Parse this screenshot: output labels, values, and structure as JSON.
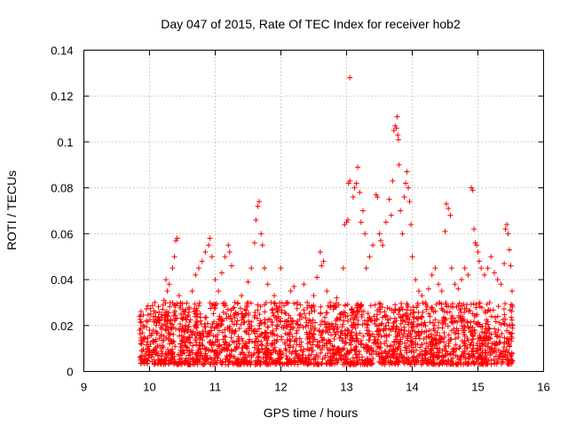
{
  "chart_data": {
    "type": "scatter",
    "title": "Day 047 of 2015, Rate Of TEC Index for receiver hob2",
    "xlabel": "GPS time / hours",
    "ylabel": "ROTI / TECUs",
    "xlim": [
      9,
      16
    ],
    "ylim": [
      0,
      0.14
    ],
    "xticks": [
      9,
      10,
      11,
      12,
      13,
      14,
      15,
      16
    ],
    "xtick_labels": [
      "9",
      "10",
      "11",
      "12",
      "13",
      "14",
      "15",
      "16"
    ],
    "yticks": [
      0,
      0.02,
      0.04,
      0.06,
      0.08,
      0.1,
      0.12,
      0.14
    ],
    "ytick_labels": [
      "0",
      "0.02",
      "0.04",
      "0.06",
      "0.08",
      "0.1",
      "0.12",
      "0.14"
    ],
    "grid": true,
    "marker": "+",
    "color": "#ff0000",
    "series": [
      {
        "name": "ROTI",
        "points": [
          [
            9.85,
            0.024
          ],
          [
            9.85,
            0.018
          ],
          [
            9.87,
            0.012
          ],
          [
            9.88,
            0.009
          ],
          [
            9.9,
            0.02
          ],
          [
            9.92,
            0.015
          ],
          [
            9.95,
            0.022
          ],
          [
            9.97,
            0.01
          ],
          [
            10.0,
            0.018
          ],
          [
            10.02,
            0.025
          ],
          [
            10.05,
            0.013
          ],
          [
            10.08,
            0.03
          ],
          [
            10.1,
            0.02
          ],
          [
            10.12,
            0.011
          ],
          [
            10.15,
            0.022
          ],
          [
            10.18,
            0.016
          ],
          [
            10.2,
            0.027
          ],
          [
            10.22,
            0.031
          ],
          [
            10.25,
            0.04
          ],
          [
            10.27,
            0.035
          ],
          [
            10.3,
            0.038
          ],
          [
            10.32,
            0.021
          ],
          [
            10.35,
            0.045
          ],
          [
            10.38,
            0.05
          ],
          [
            10.4,
            0.057
          ],
          [
            10.42,
            0.058
          ],
          [
            10.45,
            0.033
          ],
          [
            10.48,
            0.025
          ],
          [
            10.5,
            0.014
          ],
          [
            10.55,
            0.02
          ],
          [
            10.6,
            0.028
          ],
          [
            10.65,
            0.035
          ],
          [
            10.7,
            0.042
          ],
          [
            10.75,
            0.045
          ],
          [
            10.8,
            0.048
          ],
          [
            10.85,
            0.052
          ],
          [
            10.9,
            0.055
          ],
          [
            10.92,
            0.058
          ],
          [
            10.95,
            0.05
          ],
          [
            11.0,
            0.04
          ],
          [
            11.05,
            0.035
          ],
          [
            11.1,
            0.043
          ],
          [
            11.15,
            0.05
          ],
          [
            11.2,
            0.055
          ],
          [
            11.22,
            0.052
          ],
          [
            11.25,
            0.046
          ],
          [
            11.3,
            0.03
          ],
          [
            11.35,
            0.025
          ],
          [
            11.4,
            0.033
          ],
          [
            11.45,
            0.027
          ],
          [
            11.5,
            0.039
          ],
          [
            11.55,
            0.045
          ],
          [
            11.6,
            0.056
          ],
          [
            11.62,
            0.066
          ],
          [
            11.65,
            0.072
          ],
          [
            11.67,
            0.074
          ],
          [
            11.7,
            0.06
          ],
          [
            11.72,
            0.055
          ],
          [
            11.75,
            0.045
          ],
          [
            11.8,
            0.038
          ],
          [
            11.85,
            0.03
          ],
          [
            11.9,
            0.033
          ],
          [
            11.95,
            0.026
          ],
          [
            12.0,
            0.045
          ],
          [
            12.05,
            0.02
          ],
          [
            12.1,
            0.03
          ],
          [
            12.15,
            0.035
          ],
          [
            12.2,
            0.037
          ],
          [
            12.25,
            0.03
          ],
          [
            12.3,
            0.025
          ],
          [
            12.35,
            0.038
          ],
          [
            12.4,
            0.03
          ],
          [
            12.45,
            0.022
          ],
          [
            12.5,
            0.033
          ],
          [
            12.55,
            0.041
          ],
          [
            12.6,
            0.052
          ],
          [
            12.62,
            0.046
          ],
          [
            12.65,
            0.048
          ],
          [
            12.7,
            0.035
          ],
          [
            12.75,
            0.03
          ],
          [
            12.8,
            0.027
          ],
          [
            12.85,
            0.032
          ],
          [
            12.9,
            0.025
          ],
          [
            12.95,
            0.045
          ],
          [
            12.97,
            0.064
          ],
          [
            13.0,
            0.065
          ],
          [
            13.02,
            0.066
          ],
          [
            13.03,
            0.082
          ],
          [
            13.05,
            0.083
          ],
          [
            13.05,
            0.128
          ],
          [
            13.1,
            0.076
          ],
          [
            13.12,
            0.08
          ],
          [
            13.15,
            0.082
          ],
          [
            13.17,
            0.089
          ],
          [
            13.2,
            0.078
          ],
          [
            13.22,
            0.065
          ],
          [
            13.25,
            0.07
          ],
          [
            13.28,
            0.06
          ],
          [
            13.3,
            0.045
          ],
          [
            13.35,
            0.05
          ],
          [
            13.4,
            0.055
          ],
          [
            13.45,
            0.077
          ],
          [
            13.47,
            0.076
          ],
          [
            13.5,
            0.06
          ],
          [
            13.52,
            0.057
          ],
          [
            13.55,
            0.055
          ],
          [
            13.6,
            0.065
          ],
          [
            13.65,
            0.075
          ],
          [
            13.68,
            0.068
          ],
          [
            13.7,
            0.083
          ],
          [
            13.72,
            0.105
          ],
          [
            13.74,
            0.107
          ],
          [
            13.76,
            0.106
          ],
          [
            13.77,
            0.111
          ],
          [
            13.78,
            0.103
          ],
          [
            13.79,
            0.101
          ],
          [
            13.8,
            0.09
          ],
          [
            13.82,
            0.07
          ],
          [
            13.85,
            0.06
          ],
          [
            13.88,
            0.076
          ],
          [
            13.9,
            0.082
          ],
          [
            13.92,
            0.087
          ],
          [
            13.94,
            0.08
          ],
          [
            13.96,
            0.074
          ],
          [
            13.98,
            0.064
          ],
          [
            14.0,
            0.05
          ],
          [
            14.05,
            0.04
          ],
          [
            14.1,
            0.035
          ],
          [
            14.15,
            0.033
          ],
          [
            14.2,
            0.03
          ],
          [
            14.25,
            0.036
          ],
          [
            14.3,
            0.042
          ],
          [
            14.35,
            0.045
          ],
          [
            14.4,
            0.038
          ],
          [
            14.45,
            0.035
          ],
          [
            14.5,
            0.061
          ],
          [
            14.52,
            0.073
          ],
          [
            14.55,
            0.071
          ],
          [
            14.58,
            0.068
          ],
          [
            14.6,
            0.045
          ],
          [
            14.65,
            0.038
          ],
          [
            14.7,
            0.036
          ],
          [
            14.75,
            0.04
          ],
          [
            14.8,
            0.045
          ],
          [
            14.85,
            0.042
          ],
          [
            14.9,
            0.08
          ],
          [
            14.92,
            0.079
          ],
          [
            14.94,
            0.062
          ],
          [
            14.96,
            0.056
          ],
          [
            14.98,
            0.055
          ],
          [
            15.0,
            0.052
          ],
          [
            15.02,
            0.048
          ],
          [
            15.05,
            0.045
          ],
          [
            15.1,
            0.042
          ],
          [
            15.15,
            0.045
          ],
          [
            15.2,
            0.05
          ],
          [
            15.25,
            0.043
          ],
          [
            15.3,
            0.04
          ],
          [
            15.35,
            0.038
          ],
          [
            15.4,
            0.047
          ],
          [
            15.42,
            0.062
          ],
          [
            15.44,
            0.064
          ],
          [
            15.46,
            0.06
          ],
          [
            15.48,
            0.053
          ],
          [
            15.5,
            0.046
          ],
          [
            15.52,
            0.035
          ],
          [
            15.53,
            0.02
          ]
        ]
      }
    ],
    "background_points": {
      "x_range": [
        9.85,
        15.53
      ],
      "y_range": [
        0.003,
        0.03
      ],
      "count": 2400,
      "seed": 47
    }
  }
}
